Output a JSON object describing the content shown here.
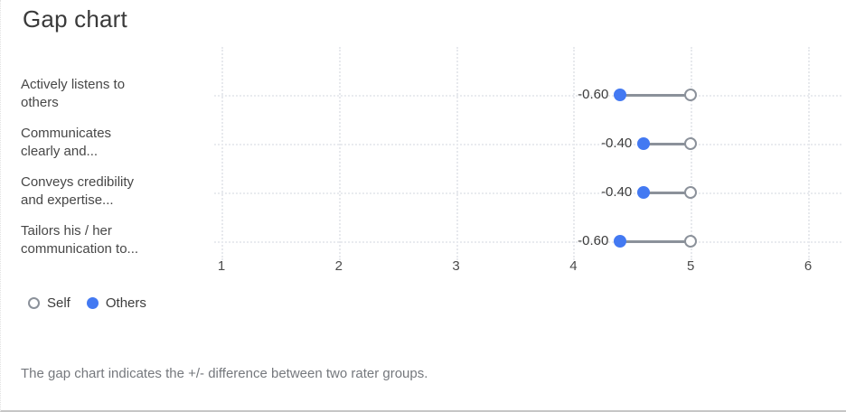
{
  "title": "Gap chart",
  "chart_data": {
    "type": "scatter",
    "subtype": "gap-dot-plot",
    "categories": [
      "Actively listens to\nothers",
      "Communicates\nclearly and...",
      "Conveys credibility\nand expertise...",
      "Tailors his / her\ncommunication to..."
    ],
    "series": [
      {
        "name": "Self",
        "marker": "open-circle",
        "color": "#8b919a",
        "values": [
          5.0,
          5.0,
          5.0,
          5.0
        ]
      },
      {
        "name": "Others",
        "marker": "filled-circle",
        "color": "#4379f2",
        "values": [
          4.4,
          4.6,
          4.6,
          4.4
        ]
      }
    ],
    "gap_labels": [
      "-0.60",
      "-0.40",
      "-0.40",
      "-0.60"
    ],
    "x_ticks": [
      1,
      2,
      3,
      4,
      5,
      6
    ],
    "xlim": [
      1,
      6
    ],
    "grid": "dotted",
    "grid_color": "#e7e9ed",
    "legend_position": "bottom-left"
  },
  "legend": [
    {
      "label": "Self",
      "marker": "open-circle",
      "color": "#8b919a"
    },
    {
      "label": "Others",
      "marker": "filled-circle",
      "color": "#4379f2"
    }
  ],
  "footer": "The gap chart indicates the +/- difference between two rater groups."
}
